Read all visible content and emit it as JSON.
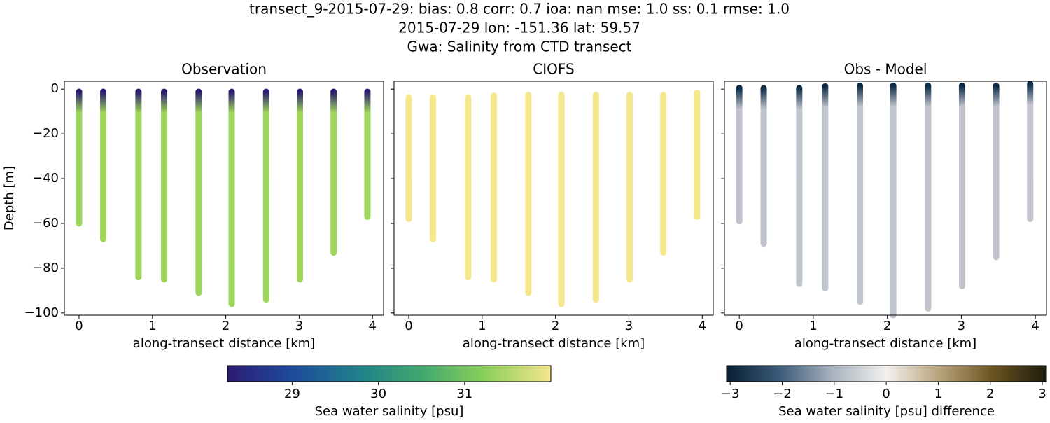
{
  "title": [
    "transect_9-2015-07-29: bias: 0.8  corr: 0.7  ioa: nan  mse: 1.0  ss: 0.1  rmse: 1.0",
    "2015-07-29 lon: -151.36 lat: 59.57",
    "Gwa: Salinity from CTD transect"
  ],
  "chart_data": [
    {
      "type": "scatter",
      "title": "Observation",
      "xlabel": "along-transect distance [km]",
      "ylabel": "Depth [m]",
      "xlim": [
        -0.2,
        4.15
      ],
      "ylim": [
        -101,
        3.5
      ],
      "xticks": [
        0,
        1,
        2,
        3,
        4
      ],
      "yticks": [
        0,
        {
          "value": -20,
          "label": "−20"
        },
        {
          "value": -40,
          "label": "−40"
        },
        {
          "value": -60,
          "label": "−60"
        },
        {
          "value": -80,
          "label": "−80"
        },
        {
          "value": -100,
          "label": "−100"
        }
      ],
      "show_ytick_labels": true,
      "x": [
        0,
        0.33,
        0.81,
        1.16,
        1.63,
        2.08,
        2.55,
        3.01,
        3.47,
        3.93
      ],
      "top": [
        -1.2,
        -1.2,
        -1.2,
        -1.2,
        -1.2,
        -1.2,
        -1.2,
        -1.2,
        -1.2,
        -1.2
      ],
      "bottom": [
        -60,
        -67,
        -84,
        -85,
        -91,
        -96,
        -94,
        -85,
        -73,
        -57
      ],
      "top_color": "#2a1a70",
      "color": "#9dd65a"
    },
    {
      "type": "scatter",
      "title": "CIOFS",
      "xlabel": "along-transect distance [km]",
      "xlim": [
        -0.2,
        4.15
      ],
      "ylim": [
        -101,
        3.5
      ],
      "xticks": [
        0,
        1,
        2,
        3,
        4
      ],
      "yticks": [
        0,
        -20,
        -40,
        -60,
        -80,
        -100
      ],
      "show_ytick_labels": false,
      "x": [
        0,
        0.33,
        0.81,
        1.16,
        1.63,
        2.08,
        2.55,
        3.01,
        3.47,
        3.93
      ],
      "top": [
        -3.8,
        -3.8,
        -3.8,
        -3,
        -2.6,
        -2.6,
        -2.6,
        -2.6,
        -2.6,
        -1.6
      ],
      "bottom": [
        -58,
        -67,
        -84,
        -85,
        -91,
        -96,
        -94,
        -85,
        -73,
        -57
      ],
      "top_color": "#f6e68c",
      "color": "#f6e68c"
    },
    {
      "type": "scatter",
      "title": "Obs - Model",
      "xlabel": "along-transect distance [km]",
      "xlim": [
        -0.2,
        4.15
      ],
      "ylim": [
        -101,
        3.5
      ],
      "xticks": [
        0,
        1,
        2,
        3,
        4
      ],
      "yticks": [
        0,
        -20,
        -40,
        -60,
        -80,
        -100
      ],
      "show_ytick_labels": false,
      "x": [
        0,
        0.33,
        0.81,
        1.16,
        1.63,
        2.08,
        2.55,
        3.01,
        3.47,
        3.93
      ],
      "top": [
        0.5,
        0.4,
        0.4,
        1.2,
        1.5,
        1.5,
        1.5,
        1.5,
        1.5,
        2.3
      ],
      "bottom": [
        -59,
        -69,
        -87,
        -89,
        -95,
        -101,
        -98,
        -88,
        -75,
        -58
      ],
      "top_color": "#0b2a45",
      "color": "#c0c4cc"
    }
  ],
  "colorbars": [
    {
      "label": "Sea water salinity [psu]",
      "lim": [
        28.25,
        32.0
      ],
      "ticks": [
        29,
        30,
        31
      ],
      "colors": [
        "#2c1a72",
        "#1f4a9e",
        "#1f7f8a",
        "#3fa86e",
        "#8dd05a",
        "#f6e68c"
      ]
    },
    {
      "label": "Sea water salinity [psu] difference",
      "lim": [
        -3.07,
        3.08
      ],
      "ticks": [
        {
          "value": -3,
          "label": "−3"
        },
        {
          "value": -2,
          "label": "−2"
        },
        {
          "value": -1,
          "label": "−1"
        },
        0,
        1,
        2,
        3
      ],
      "colors": [
        "#071e33",
        "#3c5c7a",
        "#a8b3c0",
        "#f4f1ee",
        "#b8a27a",
        "#6b5320",
        "#1c1c0c"
      ]
    }
  ]
}
